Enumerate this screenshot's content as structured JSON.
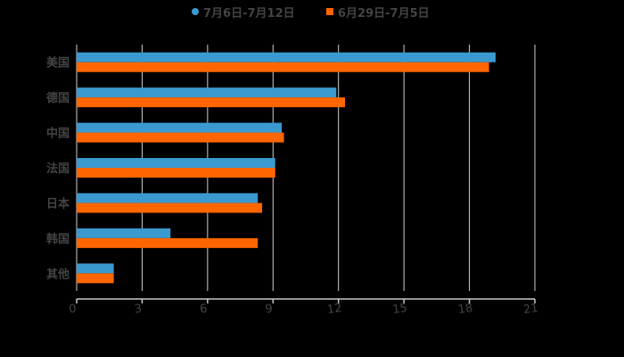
{
  "chart_data": {
    "type": "bar",
    "orientation": "horizontal",
    "title": "",
    "xlabel": "",
    "ylabel": "",
    "categories": [
      "美国",
      "德国",
      "中国",
      "法国",
      "日本",
      "韩国",
      "其他"
    ],
    "series": [
      {
        "name": "7月6日-7月12日",
        "color": "#3A9AD0",
        "marker": "circle",
        "values": [
          19.2,
          11.9,
          9.4,
          9.1,
          8.3,
          4.3,
          1.7
        ]
      },
      {
        "name": "6月29日-7月5日",
        "color": "#FF6600",
        "marker": "square",
        "values": [
          18.9,
          12.3,
          9.5,
          9.1,
          8.5,
          8.3,
          1.7
        ]
      }
    ],
    "xlim": [
      0,
      21
    ],
    "xticks": [
      0,
      3,
      6,
      9,
      12,
      15,
      18,
      21
    ],
    "grid": true,
    "legend_position": "top",
    "background": "#000000"
  },
  "legend": {
    "items": [
      {
        "label": "7月6日-7月12日",
        "color": "#3A9AD0",
        "marker": "circle"
      },
      {
        "label": "6月29日-7月5日",
        "color": "#FF6600",
        "marker": "square"
      }
    ]
  }
}
